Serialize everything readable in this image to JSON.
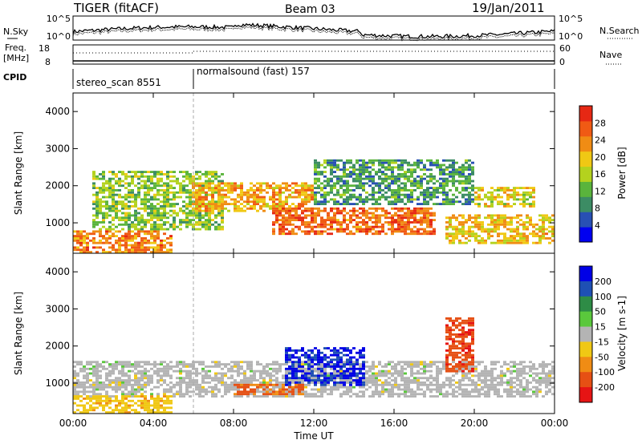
{
  "header": {
    "station": "TIGER (fitACF)",
    "beam": "Beam 03",
    "date": "19/Jan/2011"
  },
  "noise_panel": {
    "left_label": "N.Sky",
    "right_label": "N.Search",
    "ticks": [
      "10^5",
      "10^0"
    ]
  },
  "freq_panel": {
    "left_label_line1": "Freq.",
    "left_label_line2": "[MHz]",
    "left_ticks": [
      "18",
      "8"
    ],
    "right_label": "Nave",
    "right_ticks": [
      "60",
      "0"
    ]
  },
  "cpid_panel": {
    "label": "CPID",
    "programs": [
      {
        "name": "stereo_scan 8551"
      },
      {
        "name": "normalsound (fast) 157"
      }
    ]
  },
  "colors": {
    "power": [
      "#0000f0",
      "#2850b4",
      "#3c8c64",
      "#5ab43c",
      "#b4d21e",
      "#f0c814",
      "#f08c14",
      "#f05a14",
      "#e62814"
    ],
    "velocity": [
      "#0000e6",
      "#1e50b4",
      "#2e8c46",
      "#5ac83c",
      "#b4b4b4",
      "#f0c814",
      "#f08c14",
      "#e65014",
      "#e61414"
    ]
  },
  "chart_data": [
    {
      "type": "heatmap",
      "title": "Power",
      "ylabel": "Slant Range [km]",
      "ylim": [
        180,
        4500
      ],
      "y_ticks": [
        "1000",
        "2000",
        "3000",
        "4000"
      ],
      "colorbar": {
        "label": "Power [dB]",
        "ticks": [
          "28",
          "24",
          "20",
          "16",
          "12",
          "8",
          "4"
        ],
        "range": [
          0,
          32
        ]
      },
      "echo_regions": [
        {
          "t_start": "01:00",
          "t_end": "07:30",
          "range_km": [
            800,
            2400
          ],
          "power_db": 14
        },
        {
          "t_start": "00:00",
          "t_end": "05:00",
          "range_km": [
            200,
            800
          ],
          "power_db": 24
        },
        {
          "t_start": "06:00",
          "t_end": "12:00",
          "range_km": [
            1300,
            2100
          ],
          "power_db": 22
        },
        {
          "t_start": "10:00",
          "t_end": "18:00",
          "range_km": [
            700,
            1400
          ],
          "power_db": 26
        },
        {
          "t_start": "12:00",
          "t_end": "20:00",
          "range_km": [
            1500,
            2700
          ],
          "power_db": 10
        },
        {
          "t_start": "18:30",
          "t_end": "24:00",
          "range_km": [
            400,
            1200
          ],
          "power_db": 20
        },
        {
          "t_start": "20:00",
          "t_end": "23:00",
          "range_km": [
            1400,
            2000
          ],
          "power_db": 18
        }
      ]
    },
    {
      "type": "heatmap",
      "title": "Velocity",
      "xlabel": "Time UT",
      "ylabel": "Slant Range [km]",
      "ylim": [
        180,
        4500
      ],
      "xlim": [
        "00:00",
        "24:00"
      ],
      "x_ticks": [
        "00:00",
        "04:00",
        "08:00",
        "12:00",
        "16:00",
        "20:00",
        "00:00"
      ],
      "y_ticks": [
        "1000",
        "2000",
        "3000",
        "4000"
      ],
      "colorbar": {
        "label": "Velocity [m s-1]",
        "ticks": [
          "200",
          "100",
          "50",
          "15",
          "-15",
          "-50",
          "-100",
          "-200"
        ],
        "range": [
          -250,
          250
        ]
      },
      "echo_regions": [
        {
          "t_start": "00:00",
          "t_end": "24:00",
          "range_km": [
            600,
            1600
          ],
          "velocity_ms": 0
        },
        {
          "t_start": "10:30",
          "t_end": "14:30",
          "range_km": [
            900,
            2000
          ],
          "velocity_ms": 200
        },
        {
          "t_start": "08:00",
          "t_end": "11:30",
          "range_km": [
            650,
            1000
          ],
          "velocity_ms": -150
        },
        {
          "t_start": "18:30",
          "t_end": "20:00",
          "range_km": [
            1300,
            2800
          ],
          "velocity_ms": -180
        },
        {
          "t_start": "00:00",
          "t_end": "05:00",
          "range_km": [
            200,
            700
          ],
          "velocity_ms": -60
        }
      ]
    }
  ]
}
